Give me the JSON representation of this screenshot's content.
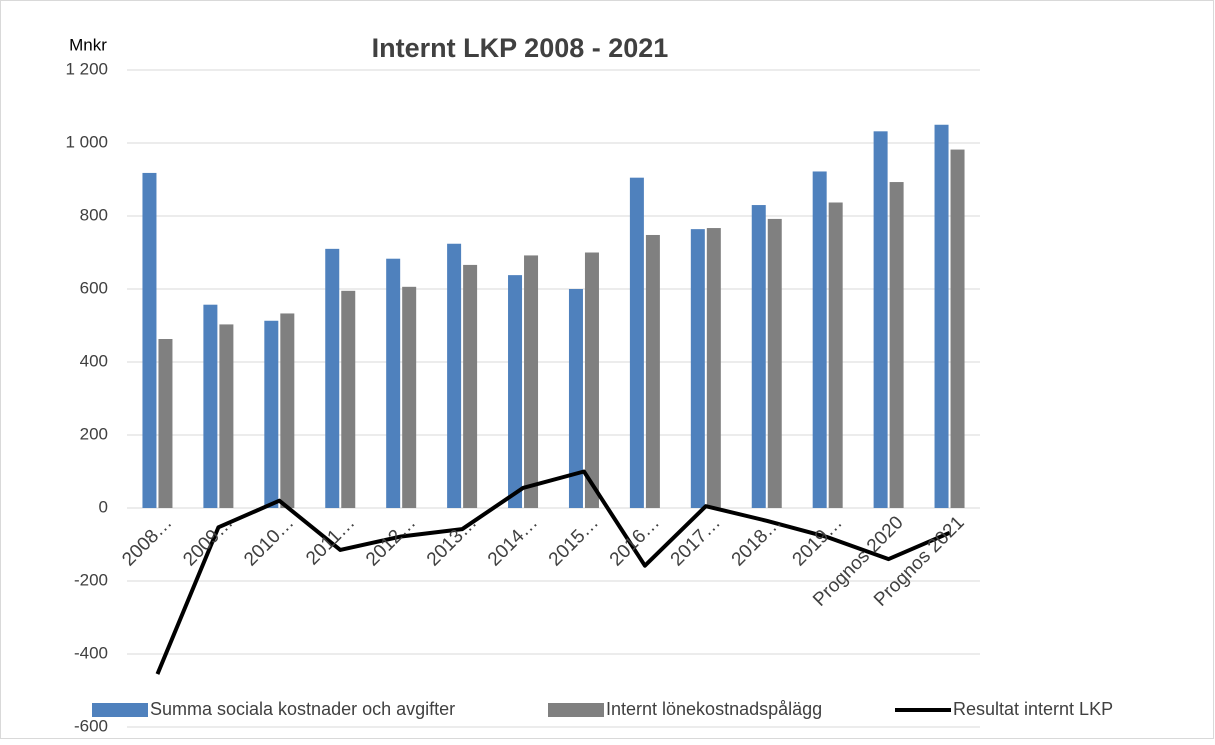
{
  "chart_data": {
    "type": "bar",
    "title": "Internt LKP 2008 - 2021",
    "y_label": "Mnkr",
    "categories": [
      "2008…",
      "2009…",
      "2010…",
      "2011…",
      "2012…",
      "2013…",
      "2014…",
      "2015…",
      "2016…",
      "2017…",
      "2018…",
      "2019…",
      "Prognos 2020",
      "Prognos 2021"
    ],
    "series": [
      {
        "name": "Summa sociala kostnader och avgifter",
        "color": "#4f81bd",
        "values": [
          918,
          557,
          513,
          710,
          683,
          724,
          638,
          600,
          905,
          764,
          830,
          922,
          1032,
          1050
        ]
      },
      {
        "name": "Internt lönekostnadspålägg",
        "color": "#808080",
        "values": [
          463,
          503,
          533,
          595,
          606,
          666,
          692,
          700,
          748,
          767,
          792,
          837,
          893,
          982
        ]
      },
      {
        "name": "Resultat internt LKP",
        "type": "line",
        "color": "#000000",
        "values": [
          -455,
          -53,
          20,
          -115,
          -78,
          -58,
          55,
          100,
          -158,
          5,
          -35,
          -80,
          -140,
          -68
        ]
      }
    ],
    "ylim": [
      -600,
      1200
    ],
    "yticks": [
      -600,
      -400,
      -200,
      0,
      200,
      400,
      600,
      800,
      {
        "value": 1000,
        "label": "1 000"
      },
      {
        "value": 1200,
        "label": "1 200"
      }
    ],
    "grid": true,
    "legend": "bottom"
  }
}
